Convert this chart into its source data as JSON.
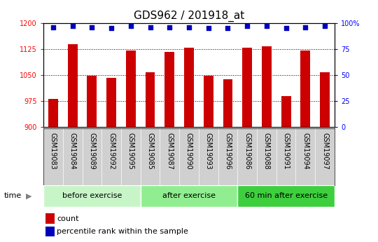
{
  "title": "GDS962 / 201918_at",
  "samples": [
    "GSM19083",
    "GSM19084",
    "GSM19089",
    "GSM19092",
    "GSM19095",
    "GSM19085",
    "GSM19087",
    "GSM19090",
    "GSM19093",
    "GSM19096",
    "GSM19086",
    "GSM19088",
    "GSM19091",
    "GSM19094",
    "GSM19097"
  ],
  "counts": [
    982,
    1138,
    1047,
    1042,
    1120,
    1057,
    1117,
    1128,
    1047,
    1038,
    1128,
    1132,
    990,
    1120,
    1057
  ],
  "percentile_ranks": [
    96,
    97,
    96,
    95,
    97,
    96,
    96,
    96,
    95,
    95,
    97,
    97,
    95,
    96,
    97
  ],
  "groups": [
    {
      "label": "before exercise",
      "start": 0,
      "end": 5,
      "color": "#c8f5c8"
    },
    {
      "label": "after exercise",
      "start": 5,
      "end": 10,
      "color": "#90ee90"
    },
    {
      "label": "60 min after exercise",
      "start": 10,
      "end": 15,
      "color": "#3ecf3e"
    }
  ],
  "ylim_left": [
    900,
    1200
  ],
  "ylim_right": [
    0,
    100
  ],
  "yticks_left": [
    900,
    975,
    1050,
    1125,
    1200
  ],
  "yticks_right": [
    0,
    25,
    50,
    75,
    100
  ],
  "bar_color": "#cc0000",
  "dot_color": "#0000bb",
  "bar_width": 0.5,
  "grid_color": "#000000",
  "plot_bg_color": "#ffffff",
  "xticklabel_bg": "#d0d0d0",
  "title_fontsize": 11,
  "tick_fontsize": 7,
  "group_fontsize": 8,
  "legend_fontsize": 8
}
